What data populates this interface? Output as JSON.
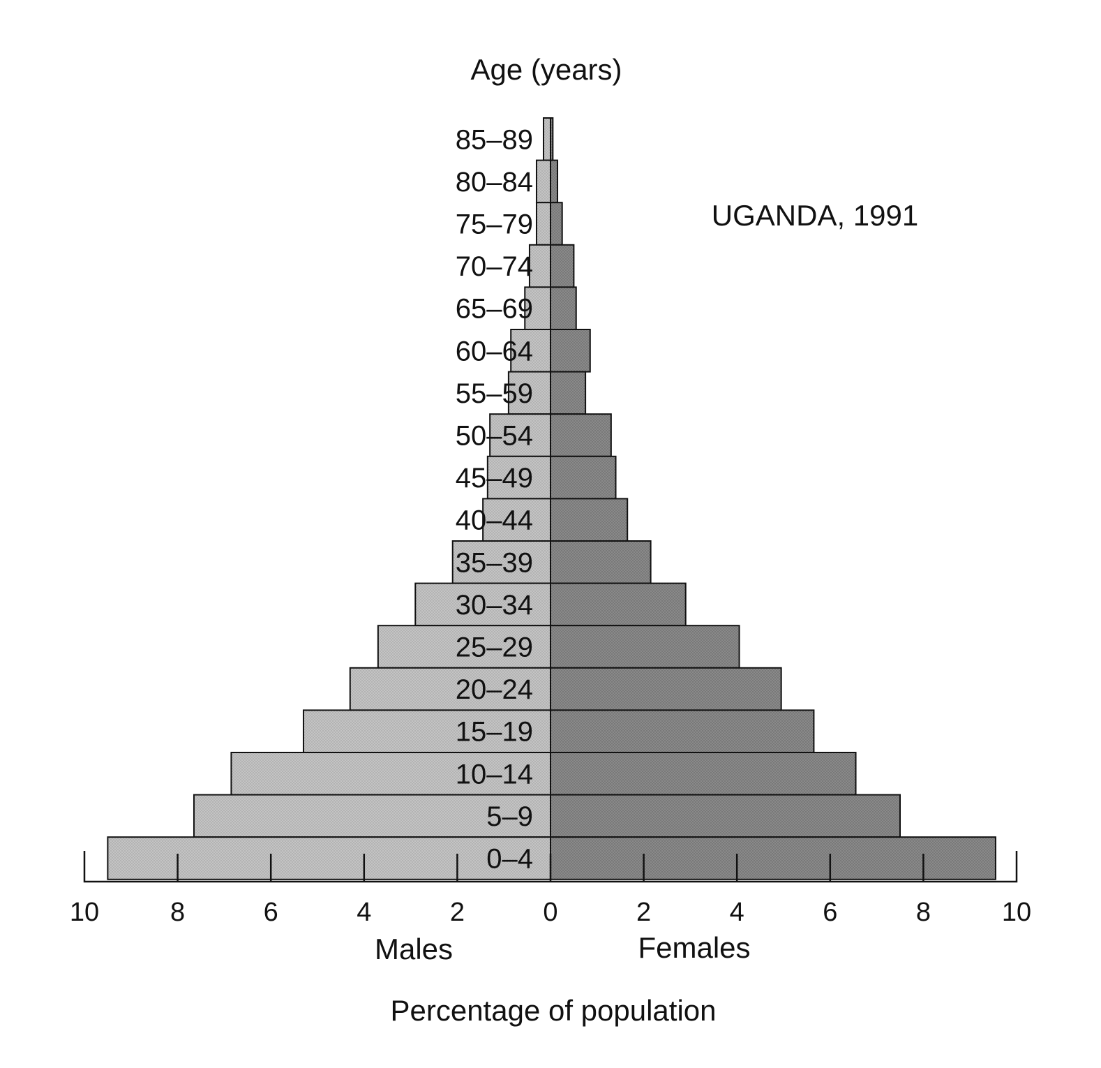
{
  "chart_data": {
    "type": "bar",
    "orientation": "horizontal",
    "layout": "population-pyramid",
    "title": "UGANDA, 1991",
    "ylabel": "Age (years)",
    "xlabel": "Percentage of population",
    "categories": [
      "85–89",
      "80–84",
      "75–79",
      "70–74",
      "65–69",
      "60–64",
      "55–59",
      "50–54",
      "45–49",
      "40–44",
      "35–39",
      "30–34",
      "25–29",
      "20–24",
      "15–19",
      "10–14",
      "5–9",
      "0–4"
    ],
    "series": [
      {
        "name": "Males",
        "side": "left",
        "color": "#c4c4c4",
        "values": [
          0.15,
          0.3,
          0.3,
          0.45,
          0.55,
          0.85,
          0.9,
          1.3,
          1.35,
          1.45,
          2.1,
          2.9,
          3.7,
          4.3,
          5.3,
          6.85,
          7.65,
          9.5
        ]
      },
      {
        "name": "Females",
        "side": "right",
        "color": "#8a8a8a",
        "values": [
          0.05,
          0.15,
          0.25,
          0.5,
          0.55,
          0.85,
          0.75,
          1.3,
          1.4,
          1.65,
          2.15,
          2.9,
          4.05,
          4.95,
          5.65,
          6.55,
          7.5,
          9.55
        ]
      }
    ],
    "xlim": [
      -10,
      10
    ],
    "xticks": [
      -10,
      -8,
      -6,
      -4,
      -2,
      0,
      2,
      4,
      6,
      8,
      10
    ],
    "xtick_labels": [
      "10",
      "8",
      "6",
      "4",
      "2",
      "0",
      "2",
      "4",
      "6",
      "8",
      "10"
    ],
    "side_labels": {
      "left": "Males",
      "right": "Females"
    },
    "grid": false,
    "legend": "none"
  }
}
